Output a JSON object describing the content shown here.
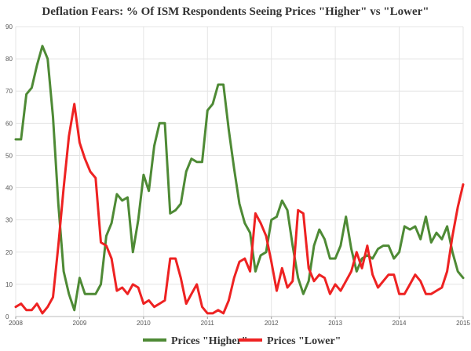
{
  "chart_data": {
    "type": "line",
    "title": "Deflation Fears: % Of ISM Respondents Seeing Prices \"Higher\" vs \"Lower\"",
    "xlabel": "",
    "ylabel": "",
    "xlim": [
      2008.0,
      2015.0
    ],
    "ylim": [
      0,
      90
    ],
    "y_ticks": [
      0,
      10,
      20,
      30,
      40,
      50,
      60,
      70,
      80,
      90
    ],
    "x_ticks": [
      2008,
      2009,
      2010,
      2011,
      2012,
      2013,
      2014,
      2015
    ],
    "grid": true,
    "legend_position": "bottom-center",
    "x": [
      2008.0,
      2008.083,
      2008.167,
      2008.25,
      2008.333,
      2008.417,
      2008.5,
      2008.583,
      2008.667,
      2008.75,
      2008.833,
      2008.917,
      2009.0,
      2009.083,
      2009.167,
      2009.25,
      2009.333,
      2009.417,
      2009.5,
      2009.583,
      2009.667,
      2009.75,
      2009.833,
      2009.917,
      2010.0,
      2010.083,
      2010.167,
      2010.25,
      2010.333,
      2010.417,
      2010.5,
      2010.583,
      2010.667,
      2010.75,
      2010.833,
      2010.917,
      2011.0,
      2011.083,
      2011.167,
      2011.25,
      2011.333,
      2011.417,
      2011.5,
      2011.583,
      2011.667,
      2011.75,
      2011.833,
      2011.917,
      2012.0,
      2012.083,
      2012.167,
      2012.25,
      2012.333,
      2012.417,
      2012.5,
      2012.583,
      2012.667,
      2012.75,
      2012.833,
      2012.917,
      2013.0,
      2013.083,
      2013.167,
      2013.25,
      2013.333,
      2013.417,
      2013.5,
      2013.583,
      2013.667,
      2013.75,
      2013.833,
      2013.917,
      2014.0,
      2014.083,
      2014.167,
      2014.25,
      2014.333,
      2014.417,
      2014.5,
      2014.583,
      2014.667,
      2014.75,
      2014.833,
      2014.917,
      2015.0
    ],
    "series": [
      {
        "name": "Prices \"Higher\"",
        "color": "#4e8a35",
        "values": [
          55,
          55,
          69,
          71,
          78,
          84,
          80,
          62,
          35,
          14,
          7,
          2,
          12,
          7,
          7,
          7,
          10,
          25,
          29,
          38,
          36,
          37,
          20,
          30,
          44,
          39,
          53,
          60,
          60,
          32,
          33,
          35,
          45,
          49,
          48,
          48,
          64,
          66,
          72,
          72,
          58,
          46,
          35,
          29,
          26,
          14,
          19,
          20,
          30,
          31,
          36,
          33,
          22,
          12,
          7,
          11,
          22,
          27,
          24,
          18,
          18,
          22,
          31,
          21,
          14,
          18,
          19,
          18,
          21,
          22,
          22,
          18,
          20,
          28,
          27,
          28,
          24,
          31,
          23,
          26,
          24,
          28,
          20,
          14,
          12
        ]
      },
      {
        "name": "Prices \"Lower\"",
        "color": "#ee2222",
        "values": [
          3,
          4,
          2,
          2,
          4,
          1,
          3,
          6,
          22,
          40,
          56,
          66,
          54,
          49,
          45,
          43,
          23,
          22,
          18,
          8,
          9,
          7,
          10,
          9,
          4,
          5,
          3,
          4,
          5,
          18,
          18,
          12,
          4,
          7,
          10,
          3,
          1,
          1,
          2,
          1,
          5,
          12,
          17,
          18,
          14,
          32,
          29,
          25,
          17,
          8,
          15,
          9,
          11,
          33,
          32,
          15,
          11,
          13,
          12,
          7,
          10,
          8,
          11,
          14,
          20,
          15,
          22,
          13,
          9,
          11,
          13,
          13,
          7,
          7,
          10,
          13,
          11,
          7,
          7,
          8,
          9,
          14,
          25,
          34,
          41
        ]
      }
    ]
  }
}
